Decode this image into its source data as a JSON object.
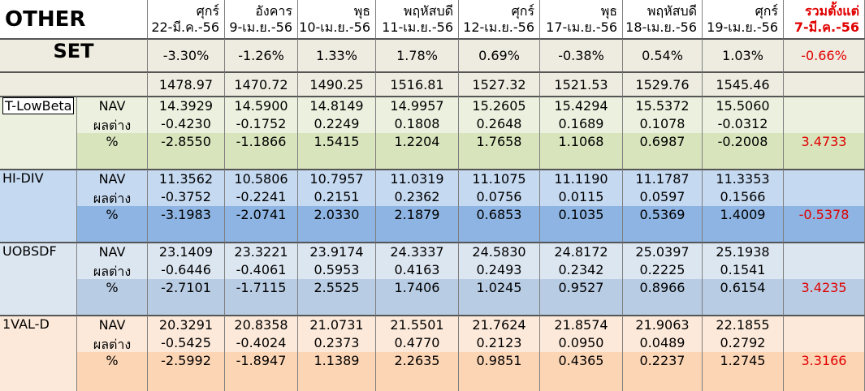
{
  "header": {
    "title": "OTHER",
    "dates": [
      {
        "day": "ศุกร์",
        "date": "22-มี.ค.-56"
      },
      {
        "day": "อังคาร",
        "date": "9-เม.ย.-56"
      },
      {
        "day": "พุธ",
        "date": "10-เม.ย.-56"
      },
      {
        "day": "พฤหัสบดี",
        "date": "11-เม.ย.-56"
      },
      {
        "day": "ศุกร์",
        "date": "12-เม.ย.-56"
      },
      {
        "day": "พุธ",
        "date": "17-เม.ย.-56"
      },
      {
        "day": "พฤหัสบดี",
        "date": "18-เม.ย.-56"
      },
      {
        "day": "ศุกร์",
        "date": "19-เม.ย.-56"
      }
    ],
    "total": {
      "line1": "รวมตั้งแต่",
      "line2": "7-มี.ค.-56"
    }
  },
  "set": {
    "label": "SET",
    "change": [
      "-3.30%",
      "-1.26%",
      "1.33%",
      "1.78%",
      "0.69%",
      "-0.38%",
      "0.54%",
      "1.03%"
    ],
    "change_total": "-0.66%",
    "index": [
      "1478.97",
      "1470.72",
      "1490.25",
      "1516.81",
      "1527.32",
      "1521.53",
      "1529.76",
      "1545.46"
    ]
  },
  "funds": [
    {
      "name": "T-LowBeta",
      "rows": [
        {
          "label": "NAV",
          "values": [
            "14.3929",
            "14.5900",
            "14.8149",
            "14.9957",
            "15.2605",
            "15.4294",
            "15.5372",
            "15.5060"
          ]
        },
        {
          "label": "ผลต่าง",
          "values": [
            "-0.4230",
            "-0.1752",
            "0.2249",
            "0.1808",
            "0.2648",
            "0.1689",
            "0.1078",
            "-0.0312"
          ]
        },
        {
          "label": "%",
          "values": [
            "-2.8550",
            "-1.1866",
            "1.5415",
            "1.2204",
            "1.7658",
            "1.1068",
            "0.6987",
            "-0.2008"
          ],
          "total": "3.4733"
        }
      ]
    },
    {
      "name": "HI-DIV",
      "rows": [
        {
          "label": "NAV",
          "values": [
            "11.3562",
            "10.5806",
            "10.7957",
            "11.0319",
            "11.1075",
            "11.1190",
            "11.1787",
            "11.3353"
          ]
        },
        {
          "label": "ผลต่าง",
          "values": [
            "-0.3752",
            "-0.2241",
            "0.2151",
            "0.2362",
            "0.0756",
            "0.0115",
            "0.0597",
            "0.1566"
          ]
        },
        {
          "label": "%",
          "values": [
            "-3.1983",
            "-2.0741",
            "2.0330",
            "2.1879",
            "0.6853",
            "0.1035",
            "0.5369",
            "1.4009"
          ],
          "total": "-0.5378"
        }
      ]
    },
    {
      "name": "UOBSDF",
      "rows": [
        {
          "label": "NAV",
          "values": [
            "23.1409",
            "23.3221",
            "23.9174",
            "24.3337",
            "24.5830",
            "24.8172",
            "25.0397",
            "25.1938"
          ]
        },
        {
          "label": "ผลต่าง",
          "values": [
            "-0.6446",
            "-0.4061",
            "0.5953",
            "0.4163",
            "0.2493",
            "0.2342",
            "0.2225",
            "0.1541"
          ]
        },
        {
          "label": "%",
          "values": [
            "-2.7101",
            "-1.7115",
            "2.5525",
            "1.7406",
            "1.0245",
            "0.9527",
            "0.8966",
            "0.6154"
          ],
          "total": "3.4235"
        }
      ]
    },
    {
      "name": "1VAL-D",
      "rows": [
        {
          "label": "NAV",
          "values": [
            "20.3291",
            "20.8358",
            "21.0731",
            "21.5501",
            "21.7624",
            "21.8574",
            "21.9063",
            "22.1855"
          ]
        },
        {
          "label": "ผลต่าง",
          "values": [
            "-0.5425",
            "-0.4024",
            "0.2373",
            "0.4770",
            "0.2123",
            "0.0950",
            "0.0489",
            "0.2792"
          ]
        },
        {
          "label": "%",
          "values": [
            "-2.5992",
            "-1.8947",
            "1.1389",
            "2.2635",
            "0.9851",
            "0.4365",
            "0.2237",
            "1.2745"
          ],
          "total": "3.3166"
        }
      ]
    }
  ]
}
